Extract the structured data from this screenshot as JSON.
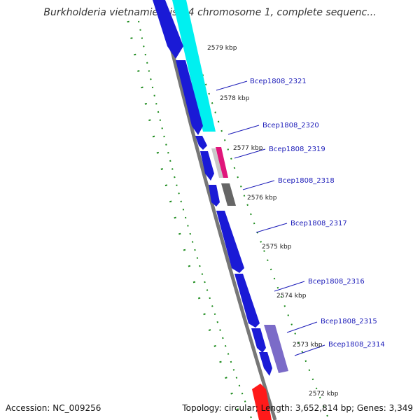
{
  "title": "Burkholderia vietnamiensis G4 chromosome 1, complete sequenc...",
  "footer": {
    "accession": "Accession: NC_009256",
    "topology": "Topology: circular; Length: 3,652,814 bp; Genes: 3,349"
  },
  "colors": {
    "forward_gene": "#1a1ad6",
    "cyan_feature": "#00f0f0",
    "magenta_feature": "#e0157a",
    "gray_feature": "#666666",
    "purple_feature": "#7b6bc8",
    "red_feature": "#ff1a1a",
    "backbone": "#777777",
    "tick": "#1a8a1a",
    "label_line": "#1a1ab8"
  },
  "gene_labels": [
    "Bcep1808_2321",
    "Bcep1808_2320",
    "Bcep1808_2319",
    "Bcep1808_2318",
    "Bcep1808_2317",
    "Bcep1808_2316",
    "Bcep1808_2315",
    "Bcep1808_2314"
  ],
  "kbp_labels": [
    "2579 kbp",
    "2578 kbp",
    "2577 kbp",
    "2576 kbp",
    "2575 kbp",
    "2574 kbp",
    "2573 kbp",
    "2572 kbp"
  ]
}
